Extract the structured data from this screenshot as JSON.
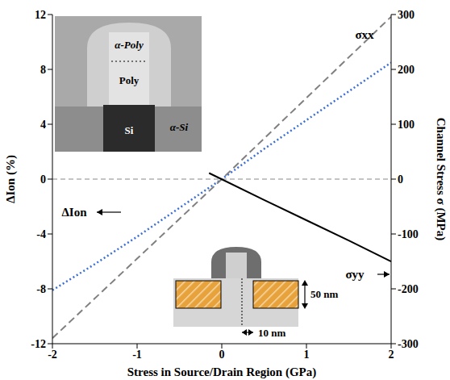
{
  "chart_data": {
    "type": "line",
    "xlabel": "Stress in Source/Drain Region (GPa)",
    "ylabel": "ΔIon (%)",
    "y2label": "Channel Stress σ (MPa)",
    "xlim": [
      -2,
      2
    ],
    "xticks": [
      -2,
      -1,
      0,
      1,
      2
    ],
    "ylim": [
      -12,
      12
    ],
    "yticks": [
      -12,
      -8,
      -4,
      0,
      4,
      8,
      12
    ],
    "y2lim": [
      -300,
      300
    ],
    "y2ticks": [
      -300,
      -200,
      -100,
      0,
      100,
      200,
      300
    ],
    "grid": false,
    "hlines": [
      0
    ],
    "series": [
      {
        "name": "ΔIon",
        "color": "#3b6fd8",
        "line_style": "dotted",
        "x": [
          -2,
          -1.5,
          -1,
          -0.5,
          0,
          0.5,
          1,
          1.5,
          2
        ],
        "values": [
          -8.1,
          -6.2,
          -4.2,
          -2.1,
          0,
          2.2,
          4.3,
          6.4,
          8.5
        ]
      },
      {
        "name": "σxx",
        "color": "#808080",
        "line_style": "dashed",
        "axis": "y2",
        "x": [
          -2,
          -1,
          0,
          1,
          2
        ],
        "values": [
          -290,
          -145,
          0,
          148,
          296
        ]
      },
      {
        "name": "σyy",
        "color": "#000000",
        "line_style": "solid",
        "axis": "y2",
        "x": [
          -0.15,
          0.5,
          1,
          1.5,
          2
        ],
        "values": [
          11,
          -38,
          -75,
          -112,
          -150
        ]
      }
    ],
    "inset_labels": {
      "tem": [
        "α-Poly",
        "Poly",
        "Si",
        "α-Si"
      ],
      "schematic": [
        "50 nm",
        "10 nm"
      ]
    }
  }
}
